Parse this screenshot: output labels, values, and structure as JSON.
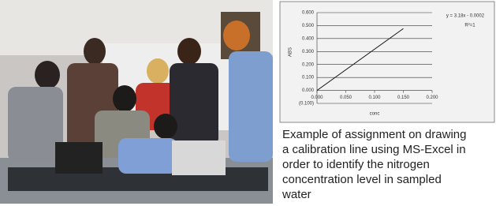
{
  "chart_data": {
    "type": "line",
    "y_label": "ABS",
    "x_label": "conc",
    "annotations": [
      "y = 3.18x - 0.0002",
      "R²=1"
    ],
    "x": [
      0,
      0.05,
      0.1,
      0.15
    ],
    "series": [
      {
        "color": "#222222",
        "values": [
          0,
          0.159,
          0.318,
          0.477
        ]
      }
    ],
    "xlim": [
      0,
      0.2
    ],
    "xticks": [
      {
        "value": 0,
        "label": "0.000"
      },
      {
        "value": 0.05,
        "label": "0.050"
      },
      {
        "value": 0.1,
        "label": "0.100"
      },
      {
        "value": 0.15,
        "label": "0.150"
      },
      {
        "value": 0.2,
        "label": "0.200"
      }
    ],
    "ylim": [
      -0.1,
      0.6
    ],
    "yticks": [
      {
        "value": 0.6,
        "label": "0.600"
      },
      {
        "value": 0.5,
        "label": "0.500"
      },
      {
        "value": 0.4,
        "label": "0.400"
      },
      {
        "value": 0.3,
        "label": "0.300"
      },
      {
        "value": 0.2,
        "label": "0.200"
      },
      {
        "value": 0.1,
        "label": "0.100"
      },
      {
        "value": 0,
        "label": "0.000"
      },
      {
        "value": -0.1,
        "label": "(0.100)"
      }
    ],
    "grid": true
  },
  "caption": [
    "Example of assignment on drawing",
    "a calibration line using MS-Excel in",
    "order to identify the nitrogen",
    "concentration level in sampled",
    "water"
  ]
}
